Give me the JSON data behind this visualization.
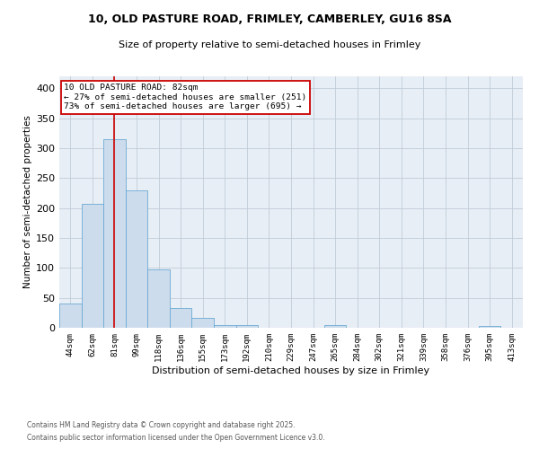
{
  "title_line1": "10, OLD PASTURE ROAD, FRIMLEY, CAMBERLEY, GU16 8SA",
  "title_line2": "Size of property relative to semi-detached houses in Frimley",
  "xlabel": "Distribution of semi-detached houses by size in Frimley",
  "ylabel": "Number of semi-detached properties",
  "categories": [
    "44sqm",
    "62sqm",
    "81sqm",
    "99sqm",
    "118sqm",
    "136sqm",
    "155sqm",
    "173sqm",
    "192sqm",
    "210sqm",
    "229sqm",
    "247sqm",
    "265sqm",
    "284sqm",
    "302sqm",
    "321sqm",
    "339sqm",
    "358sqm",
    "376sqm",
    "395sqm",
    "413sqm"
  ],
  "values": [
    40,
    207,
    315,
    230,
    98,
    33,
    16,
    4,
    4,
    0,
    0,
    0,
    5,
    0,
    0,
    0,
    0,
    0,
    0,
    3,
    0
  ],
  "bar_color": "#cddcec",
  "bar_edge_color": "#6aaad4",
  "annotation_title": "10 OLD PASTURE ROAD: 82sqm",
  "annotation_line2": "← 27% of semi-detached houses are smaller (251)",
  "annotation_line3": "73% of semi-detached houses are larger (695) →",
  "annotation_box_color": "#ffffff",
  "annotation_box_edge": "#cc0000",
  "vline_color": "#cc0000",
  "vline_x": 2,
  "ylim": [
    0,
    420
  ],
  "yticks": [
    0,
    50,
    100,
    150,
    200,
    250,
    300,
    350,
    400
  ],
  "footnote_line1": "Contains HM Land Registry data © Crown copyright and database right 2025.",
  "footnote_line2": "Contains public sector information licensed under the Open Government Licence v3.0.",
  "background_color": "#ffffff",
  "plot_bg_color": "#e8eef5",
  "grid_color": "#c0ccd8"
}
